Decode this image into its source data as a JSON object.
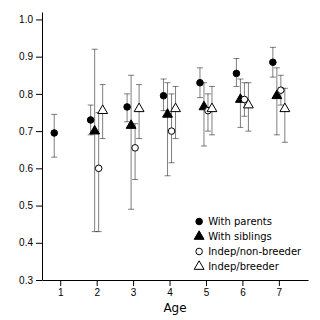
{
  "chart_data": {
    "type": "scatter",
    "x_label": "Age",
    "series": [
      {
        "name": "With parents",
        "color": "#000000",
        "marker": "circle",
        "x": [
          1,
          2,
          3,
          4,
          5,
          6,
          7
        ],
        "values": [
          0.695,
          0.73,
          0.765,
          0.795,
          0.83,
          0.855,
          0.885
        ],
        "ci_lo": [
          0.63,
          0.69,
          0.725,
          0.755,
          0.79,
          0.82,
          0.845
        ],
        "ci_hi": [
          0.745,
          0.77,
          0.8,
          0.84,
          0.87,
          0.895,
          0.925
        ]
      },
      {
        "name": "With siblings",
        "color": "#000000",
        "marker": "triangle",
        "x": [
          2,
          3,
          4,
          5,
          6,
          7
        ],
        "values": [
          0.7,
          0.715,
          0.745,
          0.765,
          0.785,
          0.795
        ],
        "ci_lo": [
          0.43,
          0.49,
          0.58,
          0.66,
          0.71,
          0.69
        ],
        "ci_hi": [
          0.92,
          0.85,
          0.83,
          0.83,
          0.84,
          0.87
        ]
      },
      {
        "name": "Indep/non-breeder",
        "color": "#000000",
        "marker": "circle-open",
        "x": [
          2,
          3,
          4,
          5,
          6,
          7
        ],
        "values": [
          0.6,
          0.655,
          0.7,
          0.755,
          0.785,
          0.81
        ],
        "ci_lo": [
          0.43,
          0.57,
          0.615,
          0.7,
          0.74,
          0.77
        ],
        "ci_hi": [
          0.75,
          0.72,
          0.8,
          0.8,
          0.83,
          0.85
        ]
      },
      {
        "name": "Indep/breeder",
        "color": "#000000",
        "marker": "triangle-open",
        "x": [
          2,
          3,
          4,
          5,
          6,
          7
        ],
        "values": [
          0.755,
          0.76,
          0.76,
          0.76,
          0.77,
          0.76
        ],
        "ci_lo": [
          0.68,
          0.68,
          0.68,
          0.69,
          0.7,
          0.67
        ],
        "ci_hi": [
          0.825,
          0.825,
          0.82,
          0.82,
          0.83,
          0.815
        ]
      }
    ],
    "xlim": [
      0.5,
      7.8
    ],
    "ylim": [
      0.3,
      1.02
    ],
    "xticks": [
      1,
      2,
      3,
      4,
      5,
      6,
      7
    ],
    "yticks": [
      0.3,
      0.4,
      0.5,
      0.6,
      0.7,
      0.8,
      0.9,
      {
        "value": 1.0,
        "label": "1.0"
      }
    ],
    "grid": false,
    "legend": "lower right"
  }
}
